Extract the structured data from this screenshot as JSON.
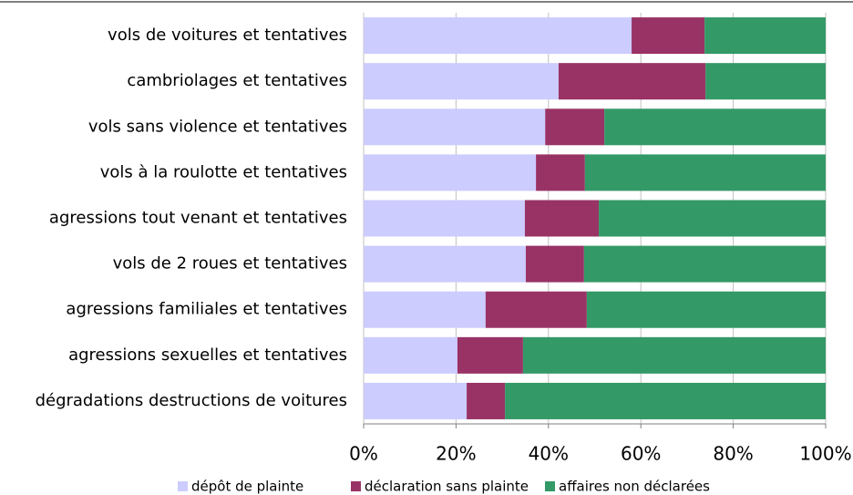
{
  "chart_data": {
    "type": "stacked_barh",
    "categories": [
      "vols de voitures et tentatives",
      "cambriolages et tentatives",
      "vols sans violence et tentatives",
      "vols à la roulotte et tentatives",
      "agressions tout venant et tentatives",
      "vols de 2 roues et tentatives",
      "agressions familiales et tentatives",
      "agressions sexuelles et tentatives",
      "dégradations destructions de voitures"
    ],
    "series": [
      {
        "name": "dépôt de plainte",
        "color": "#ccccff",
        "values": [
          58.0,
          42.2,
          39.3,
          37.3,
          34.9,
          35.1,
          26.4,
          20.3,
          22.3
        ]
      },
      {
        "name": "déclaration sans plainte",
        "color": "#993366",
        "values": [
          15.8,
          31.8,
          12.8,
          10.6,
          16.0,
          12.6,
          21.9,
          14.2,
          8.3
        ]
      },
      {
        "name": "affaires non déclarées",
        "color": "#339966",
        "values": [
          26.2,
          26.0,
          47.9,
          52.1,
          49.1,
          52.3,
          51.7,
          65.5,
          69.4
        ]
      }
    ],
    "xlim": [
      0,
      100
    ],
    "xticks": [
      {
        "value": 0,
        "label": "0%"
      },
      {
        "value": 20,
        "label": "20%"
      },
      {
        "value": 40,
        "label": "40%"
      },
      {
        "value": 60,
        "label": "60%"
      },
      {
        "value": 80,
        "label": "80%"
      },
      {
        "value": 100,
        "label": "100%"
      }
    ],
    "grid": true
  }
}
